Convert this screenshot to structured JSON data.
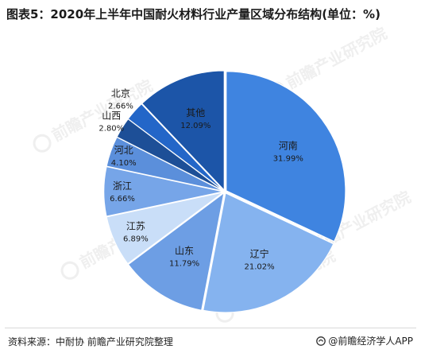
{
  "title": "图表5：2020年上半年中国耐火材料行业产量区域分布结构(单位：%)",
  "source": "资料来源：中耐协 前瞻产业研究院整理",
  "brand": "@前瞻经济学人APP",
  "watermark": {
    "text": "前瞻产业研究院",
    "icon": "qianzhan-logo-icon"
  },
  "chart_data": {
    "type": "pie",
    "title": "图表5：2020年上半年中国耐火材料行业产量区域分布结构(单位：%)",
    "unit": "%",
    "slices": [
      {
        "label": "河南",
        "value": 31.99,
        "value_text": "31.99%",
        "color": "#3f84e0"
      },
      {
        "label": "辽宁",
        "value": 21.02,
        "value_text": "21.02%",
        "color": "#85b3ef"
      },
      {
        "label": "山东",
        "value": 11.79,
        "value_text": "11.79%",
        "color": "#6d9ee4"
      },
      {
        "label": "江苏",
        "value": 6.89,
        "value_text": "6.89%",
        "color": "#c9def8"
      },
      {
        "label": "浙江",
        "value": 6.66,
        "value_text": "6.66%",
        "color": "#76a5e8"
      },
      {
        "label": "河北",
        "value": 4.1,
        "value_text": "4.10%",
        "color": "#5b8fdb"
      },
      {
        "label": "山西",
        "value": 2.8,
        "value_text": "2.80%",
        "color": "#1d4f97"
      },
      {
        "label": "北京",
        "value": 2.66,
        "value_text": "2.66%",
        "color": "#2366c8"
      },
      {
        "label": "其他",
        "value": 12.09,
        "value_text": "12.09%",
        "color": "#1c55a8"
      }
    ],
    "start_angle_deg": 0,
    "direction": "clockwise",
    "exploded": true,
    "legend": "none"
  }
}
